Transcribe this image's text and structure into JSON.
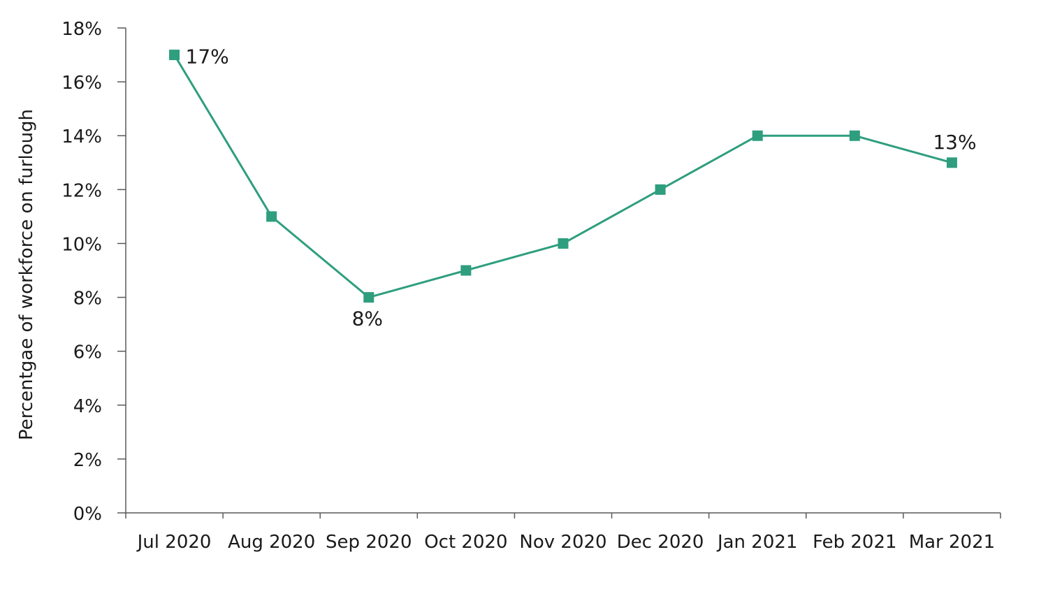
{
  "chart_data": {
    "type": "line",
    "title": "",
    "xlabel": "",
    "ylabel": "Percentgae of workforce on furlough",
    "categories": [
      "Jul 2020",
      "Aug 2020",
      "Sep 2020",
      "Oct 2020",
      "Nov 2020",
      "Dec 2020",
      "Jan 2021",
      "Feb 2021",
      "Mar 2021"
    ],
    "series": [
      {
        "values": [
          17,
          11,
          8,
          9,
          10,
          12,
          14,
          14,
          13
        ],
        "color": "#2e9e7e",
        "marker": "square"
      }
    ],
    "ylim": [
      0,
      18
    ],
    "yticks": [
      0,
      2,
      4,
      6,
      8,
      10,
      12,
      14,
      16,
      18
    ],
    "ytick_labels": [
      "0%",
      "2%",
      "4%",
      "6%",
      "8%",
      "10%",
      "12%",
      "14%",
      "16%",
      "18%"
    ],
    "data_labels": [
      {
        "category": "Jul 2020",
        "text": "17%",
        "position": "right"
      },
      {
        "category": "Sep 2020",
        "text": "8%",
        "position": "below"
      },
      {
        "category": "Mar 2021",
        "text": "13%",
        "position": "above"
      }
    ],
    "grid": false,
    "legend": "none"
  }
}
